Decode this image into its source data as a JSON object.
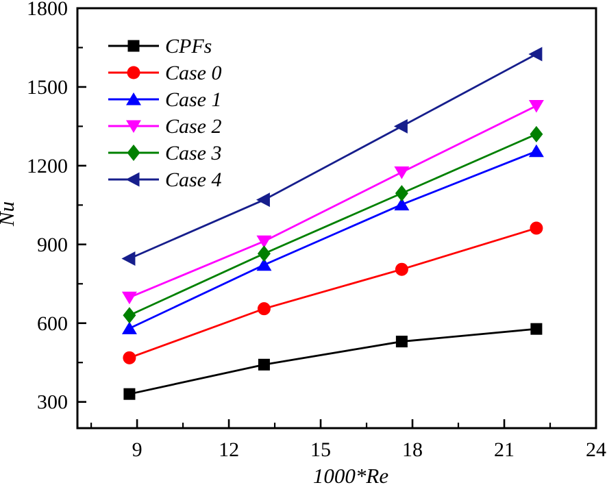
{
  "chart_data": {
    "type": "line",
    "title": "",
    "xlabel": "1000*Re",
    "ylabel": "Nu",
    "x": [
      8.75,
      13.15,
      17.65,
      22.05
    ],
    "series": [
      {
        "name": "CPFs",
        "color": "#000000",
        "marker": "square",
        "values": [
          330,
          442,
          530,
          578
        ]
      },
      {
        "name": "Case 0",
        "color": "#ff0000",
        "marker": "circle",
        "values": [
          468,
          655,
          805,
          962
        ]
      },
      {
        "name": "Case 1",
        "color": "#0000ff",
        "marker": "triangle-up",
        "values": [
          580,
          822,
          1052,
          1255
        ]
      },
      {
        "name": "Case 2",
        "color": "#ff00ff",
        "marker": "triangle-down",
        "values": [
          698,
          912,
          1175,
          1428
        ]
      },
      {
        "name": "Case 3",
        "color": "#008000",
        "marker": "diamond",
        "values": [
          630,
          865,
          1095,
          1320
        ]
      },
      {
        "name": "Case 4",
        "color": "#161e8c",
        "marker": "triangle-left",
        "values": [
          846,
          1070,
          1350,
          1625
        ]
      }
    ],
    "xlim": [
      7.05,
      24
    ],
    "ylim": [
      200,
      1800
    ],
    "xticks": [
      9,
      12,
      15,
      18,
      21,
      24
    ],
    "yticks": [
      300,
      600,
      900,
      1200,
      1500,
      1800
    ],
    "x_minor_ticks": [
      7.5,
      10.5,
      13.5,
      16.5,
      19.5,
      22.5
    ],
    "y_minor_ticks": [
      450,
      750,
      1050,
      1350,
      1650
    ],
    "grid": false,
    "legend_position": "top-left",
    "axis_color": "#000000",
    "background": "#ffffff"
  }
}
